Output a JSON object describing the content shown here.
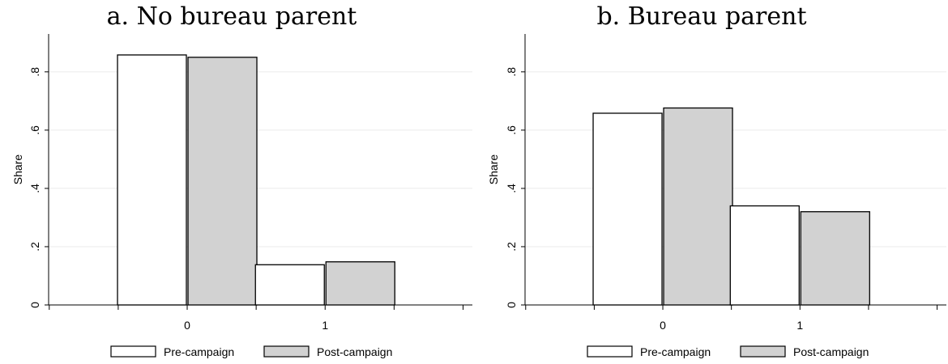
{
  "chart_data": [
    {
      "type": "bar",
      "title": "a. No bureau parent",
      "ylabel": "Share",
      "xlabel": "",
      "ylim": [
        0,
        0.93
      ],
      "x_ticks": [
        "0",
        "1"
      ],
      "y_ticks": [
        "0",
        ".2",
        ".4",
        ".6",
        ".8"
      ],
      "grid": true,
      "legend_position": "bottom",
      "categories": [
        "0",
        "1"
      ],
      "series": [
        {
          "name": "Pre-campaign",
          "values": [
            0.858,
            0.138
          ],
          "color": "#ffffff"
        },
        {
          "name": "Post-campaign",
          "values": [
            0.85,
            0.148
          ],
          "color": "#d2d2d2"
        }
      ]
    },
    {
      "type": "bar",
      "title": "b. Bureau parent",
      "ylabel": "Share",
      "xlabel": "",
      "ylim": [
        0,
        0.93
      ],
      "x_ticks": [
        "0",
        "1"
      ],
      "y_ticks": [
        "0",
        ".2",
        ".4",
        ".6",
        ".8"
      ],
      "grid": true,
      "legend_position": "bottom",
      "categories": [
        "0",
        "1"
      ],
      "series": [
        {
          "name": "Pre-campaign",
          "values": [
            0.658,
            0.34
          ],
          "color": "#ffffff"
        },
        {
          "name": "Post-campaign",
          "values": [
            0.676,
            0.32
          ],
          "color": "#d2d2d2"
        }
      ]
    }
  ]
}
